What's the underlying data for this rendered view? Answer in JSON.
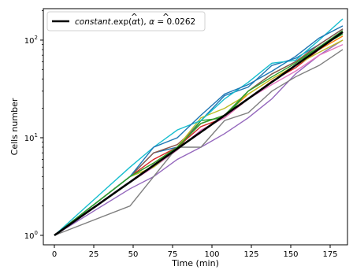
{
  "chart_data": {
    "type": "line",
    "xlabel": "Time (min)",
    "ylabel": "Cells number",
    "xlim": [
      -7,
      186
    ],
    "ylim": [
      0.8,
      210
    ],
    "yscale": "log",
    "grid": false,
    "x_ticks": [
      0,
      25,
      50,
      75,
      100,
      125,
      150,
      175
    ],
    "y_ticks": [
      {
        "value": 1,
        "base": "10",
        "exp": "0"
      },
      {
        "value": 10,
        "base": "10",
        "exp": "1"
      },
      {
        "value": 100,
        "base": "10",
        "exp": "2"
      }
    ],
    "legend": {
      "placement": "top-left",
      "entries": [
        {
          "prefix": "constant",
          "text": ".exp(",
          "hat": "α",
          "text2": "t), ",
          "hat2": "α",
          "text3": " = 0.0262"
        }
      ]
    },
    "fit": {
      "alpha": 0.0262,
      "color": "#000000"
    },
    "x": [
      0,
      48,
      63,
      78,
      93,
      108,
      123,
      138,
      153,
      168,
      183
    ],
    "series": [
      {
        "color": "#1f77b4",
        "values": [
          1,
          4,
          7,
          8,
          15,
          27,
          33,
          55,
          65,
          90,
          130
        ]
      },
      {
        "color": "#ff7f0e",
        "values": [
          1,
          4,
          5.5,
          8,
          14,
          17,
          28,
          40,
          55,
          80,
          110
        ]
      },
      {
        "color": "#2ca02c",
        "values": [
          1,
          4,
          5,
          7.5,
          15,
          16,
          30,
          45,
          60,
          85,
          115
        ]
      },
      {
        "color": "#d62728",
        "values": [
          1,
          4,
          6,
          8,
          13,
          16,
          25,
          38,
          52,
          80,
          125
        ]
      },
      {
        "color": "#9467bd",
        "values": [
          1,
          3,
          4,
          6,
          8,
          11,
          16,
          25,
          45,
          70,
          100
        ]
      },
      {
        "color": "#8c564b",
        "values": [
          1,
          4,
          7,
          8.5,
          14,
          17,
          30,
          45,
          60,
          90,
          130
        ]
      },
      {
        "color": "#e377c2",
        "values": [
          1,
          3.5,
          5,
          7.5,
          12,
          16,
          25,
          35,
          48,
          70,
          90
        ]
      },
      {
        "color": "#7f7f7f",
        "values": [
          1,
          2,
          4,
          8,
          8,
          15,
          18,
          30,
          42,
          55,
          80
        ]
      },
      {
        "color": "#bcbd22",
        "values": [
          1,
          4,
          5,
          8,
          16,
          20,
          28,
          40,
          55,
          75,
          100
        ]
      },
      {
        "color": "#17becf",
        "values": [
          1,
          5,
          8,
          12,
          15,
          25,
          37,
          58,
          62,
          100,
          165
        ]
      },
      {
        "color": "#1f77b4",
        "values": [
          1,
          4,
          8,
          10,
          17,
          28,
          35,
          48,
          68,
          105,
          140
        ]
      },
      {
        "color": "#2ca02c",
        "values": [
          1,
          4,
          5.5,
          8,
          14,
          17,
          30,
          42,
          58,
          85,
          125
        ]
      }
    ]
  }
}
